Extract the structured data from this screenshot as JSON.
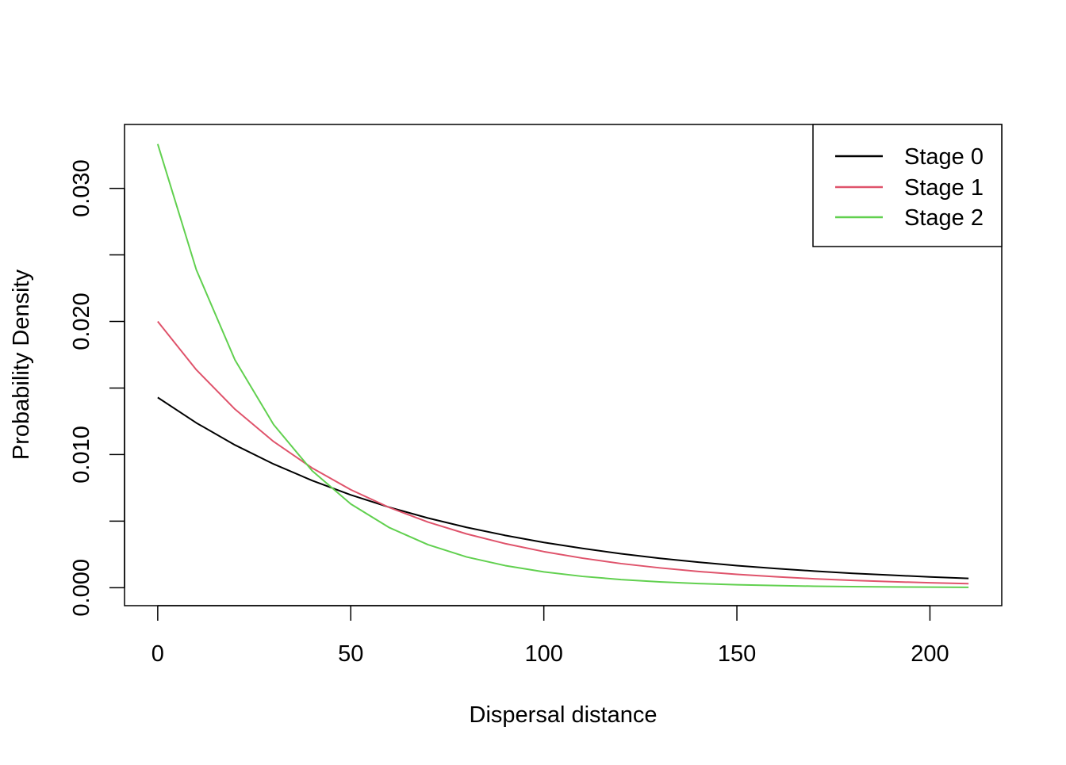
{
  "chart_data": {
    "type": "line",
    "title": "",
    "xlabel": "Dispersal distance",
    "ylabel": "Probability Density",
    "xlim": [
      -8.6,
      218.6
    ],
    "ylim": [
      -0.00135,
      0.0348
    ],
    "xticks": [
      0,
      50,
      100,
      150,
      200
    ],
    "xtick_labels": [
      "0",
      "50",
      "100",
      "150",
      "200"
    ],
    "yticks": [
      0.0,
      0.005,
      0.01,
      0.015,
      0.02,
      0.025,
      0.03
    ],
    "ytick_labels": [
      "0.000",
      "",
      "0.010",
      "",
      "0.020",
      "",
      "0.030"
    ],
    "grid": false,
    "legend_position": "top-right",
    "series": [
      {
        "name": "Stage 0",
        "color": "#000000",
        "x": [
          0,
          10,
          20,
          30,
          40,
          50,
          60,
          70,
          80,
          90,
          100,
          110,
          120,
          130,
          140,
          150,
          160,
          170,
          180,
          190,
          200,
          210
        ],
        "y": [
          0.01429,
          0.01238,
          0.01072,
          0.00929,
          0.00805,
          0.00697,
          0.00604,
          0.00523,
          0.00453,
          0.00393,
          0.0034,
          0.00295,
          0.00255,
          0.00221,
          0.00192,
          0.00166,
          0.00144,
          0.00125,
          0.00108,
          0.00094,
          0.00081,
          0.0007
        ]
      },
      {
        "name": "Stage 1",
        "color": "#DF536B",
        "x": [
          0,
          10,
          20,
          30,
          40,
          50,
          60,
          70,
          80,
          90,
          100,
          110,
          120,
          130,
          140,
          150,
          160,
          170,
          180,
          190,
          200,
          210
        ],
        "y": [
          0.02,
          0.01637,
          0.01341,
          0.01098,
          0.00899,
          0.00736,
          0.00602,
          0.00493,
          0.00404,
          0.00331,
          0.00271,
          0.00222,
          0.00181,
          0.00149,
          0.00122,
          0.001,
          0.00082,
          0.00067,
          0.00055,
          0.00045,
          0.00037,
          0.0003
        ]
      },
      {
        "name": "Stage 2",
        "color": "#61D04F",
        "x": [
          0,
          10,
          20,
          30,
          40,
          50,
          60,
          70,
          80,
          90,
          100,
          110,
          120,
          130,
          140,
          150,
          160,
          170,
          180,
          190,
          200,
          210
        ],
        "y": [
          0.03333,
          0.02388,
          0.01711,
          0.01226,
          0.00878,
          0.00629,
          0.00451,
          0.00323,
          0.00231,
          0.00166,
          0.00119,
          0.00085,
          0.00061,
          0.00044,
          0.00031,
          0.00022,
          0.00016,
          0.00011,
          8e-05,
          6e-05,
          4e-05,
          3e-05
        ]
      }
    ]
  }
}
